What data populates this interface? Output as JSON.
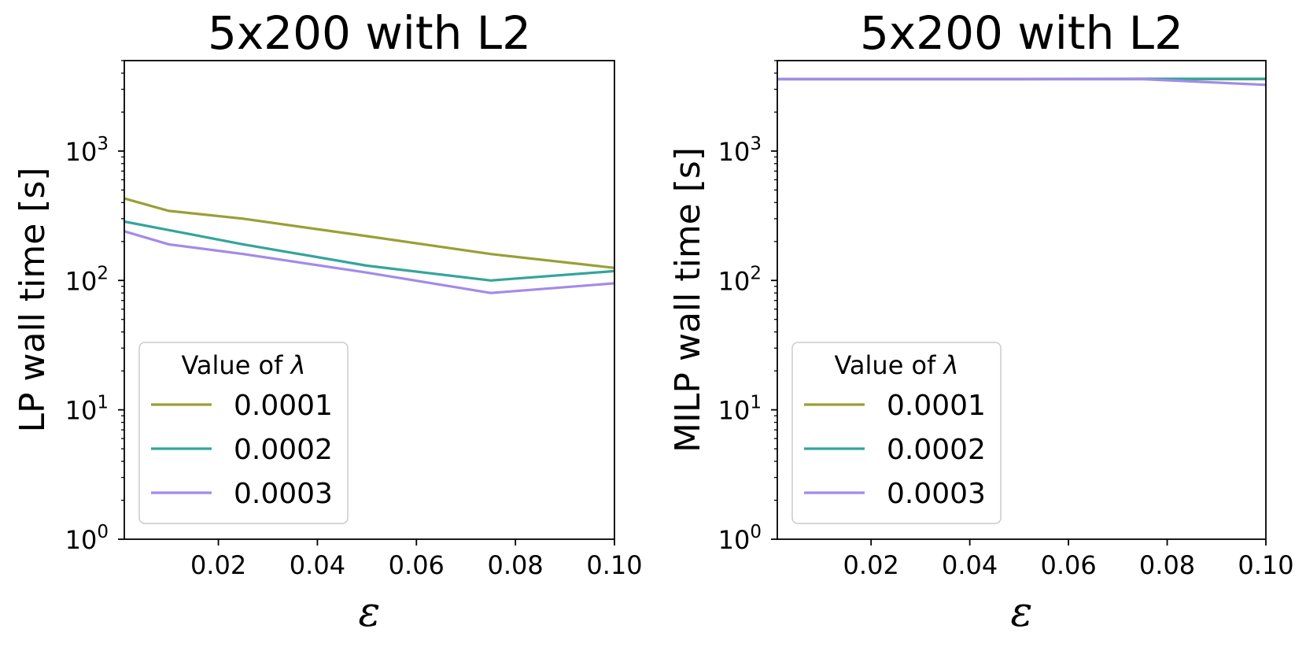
{
  "chart_data": [
    {
      "type": "line",
      "title": "5x200 with L2",
      "xlabel": "ε",
      "ylabel": "LP wall time [s]",
      "xlim": [
        0.001,
        0.1
      ],
      "ylim": [
        1,
        5000
      ],
      "yscale": "log",
      "x_ticks": [
        0.02,
        0.04,
        0.06,
        0.08,
        0.1
      ],
      "x_tick_labels": [
        "0.02",
        "0.04",
        "0.06",
        "0.08",
        "0.10"
      ],
      "y_ticks": [
        1,
        10,
        100,
        1000
      ],
      "y_tick_labels": [
        {
          "base": "10",
          "exp": "0"
        },
        {
          "base": "10",
          "exp": "1"
        },
        {
          "base": "10",
          "exp": "2"
        },
        {
          "base": "10",
          "exp": "3"
        }
      ],
      "x": [
        0.001,
        0.01,
        0.025,
        0.05,
        0.075,
        0.1
      ],
      "series": [
        {
          "name": "0.0001",
          "color": "#9a9f35",
          "values": [
            430,
            345,
            300,
            220,
            160,
            125
          ]
        },
        {
          "name": "0.0002",
          "color": "#33a59a",
          "values": [
            285,
            245,
            190,
            130,
            100,
            118
          ]
        },
        {
          "name": "0.0003",
          "color": "#a48ae8",
          "values": [
            240,
            190,
            160,
            115,
            80,
            95
          ]
        }
      ],
      "legend": {
        "title_text": "Value of ",
        "title_symbol": "λ",
        "position": "lower-left"
      },
      "grid": false
    },
    {
      "type": "line",
      "title": "5x200 with L2",
      "xlabel": "ε",
      "ylabel": "MILP wall time [s]",
      "xlim": [
        0.001,
        0.1
      ],
      "ylim": [
        1,
        5000
      ],
      "yscale": "log",
      "x_ticks": [
        0.02,
        0.04,
        0.06,
        0.08,
        0.1
      ],
      "x_tick_labels": [
        "0.02",
        "0.04",
        "0.06",
        "0.08",
        "0.10"
      ],
      "y_ticks": [
        1,
        10,
        100,
        1000
      ],
      "y_tick_labels": [
        {
          "base": "10",
          "exp": "0"
        },
        {
          "base": "10",
          "exp": "1"
        },
        {
          "base": "10",
          "exp": "2"
        },
        {
          "base": "10",
          "exp": "3"
        }
      ],
      "x": [
        0.001,
        0.01,
        0.025,
        0.05,
        0.075,
        0.1
      ],
      "series": [
        {
          "name": "0.0001",
          "color": "#9a9f35",
          "values": [
            3600,
            3600,
            3600,
            3600,
            3600,
            3600
          ]
        },
        {
          "name": "0.0002",
          "color": "#33a59a",
          "values": [
            3600,
            3600,
            3600,
            3600,
            3620,
            3620
          ]
        },
        {
          "name": "0.0003",
          "color": "#a48ae8",
          "values": [
            3600,
            3600,
            3600,
            3600,
            3600,
            3250
          ]
        }
      ],
      "legend": {
        "title_text": "Value of ",
        "title_symbol": "λ",
        "position": "lower-left"
      },
      "grid": false
    }
  ]
}
